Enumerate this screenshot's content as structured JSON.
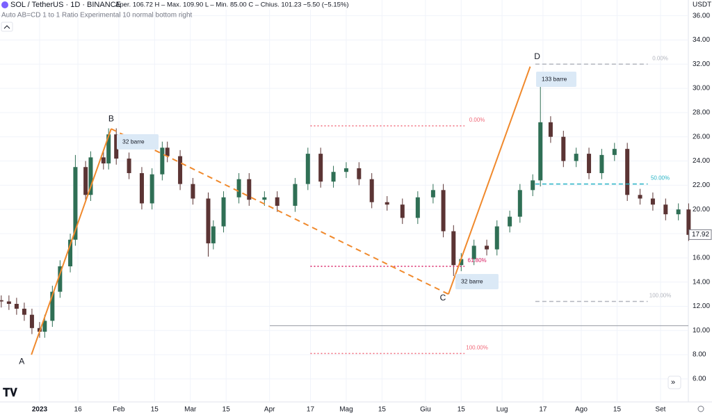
{
  "header": {
    "symbol": "SOL / TetherUS · 1D · BINANCE",
    "ohlc": "Aper. 106.72  H – Max. 109.90  L – Min. 85.00  C – Chius. 101.23  −5.50 (−5.15%)",
    "indicator": "Auto AB=CD 1 to 1 Ratio Experimental 10 normal bottom right",
    "currency": "USDT"
  },
  "chart_data": {
    "type": "candlestick",
    "up_color": "#2f6f55",
    "down_color": "#5b3434",
    "grid": true,
    "x": [
      -15,
      -12,
      -9,
      -6,
      -3,
      0,
      2,
      5,
      8,
      12,
      14,
      18,
      20,
      25,
      27,
      30,
      35,
      40,
      44,
      48,
      50,
      55,
      60,
      66,
      68,
      72,
      78,
      82,
      88,
      93,
      100,
      105,
      110,
      115,
      120,
      125,
      130,
      136,
      142,
      148,
      154,
      158,
      162,
      165,
      170,
      175,
      179,
      184,
      188,
      193,
      196,
      200,
      205,
      210,
      215,
      220,
      225,
      230,
      235,
      240,
      245,
      250,
      254
    ],
    "open": [
      12.5,
      12.4,
      12.2,
      11.8,
      11.3,
      10.2,
      9.9,
      10.8,
      13.2,
      15.3,
      17.5,
      23.5,
      21.2,
      24.3,
      23.8,
      26.2,
      24.2,
      23.0,
      20.5,
      22.9,
      25.1,
      24.4,
      22.1,
      20.9,
      17.2,
      18.6,
      21.0,
      22.5,
      20.8,
      21.0,
      20.3,
      22.1,
      24.6,
      22.3,
      23.1,
      23.4,
      22.5,
      20.6,
      20.4,
      19.3,
      21.0,
      21.6,
      18.2,
      15.4,
      15.9,
      17.0,
      16.7,
      18.6,
      19.4,
      21.6,
      22.4,
      27.2,
      26.0,
      24.0,
      24.6,
      23.0,
      24.5,
      25.0,
      21.2,
      20.9,
      20.4,
      19.6,
      20.0
    ],
    "high": [
      12.9,
      12.9,
      12.7,
      12.3,
      11.8,
      10.7,
      11.3,
      13.7,
      15.8,
      18.0,
      24.5,
      24.0,
      24.8,
      24.8,
      26.7,
      26.7,
      24.7,
      23.5,
      23.4,
      25.6,
      25.6,
      24.9,
      22.6,
      21.4,
      19.1,
      21.5,
      23.0,
      23.0,
      21.5,
      21.5,
      22.6,
      25.1,
      25.1,
      23.6,
      23.9,
      23.9,
      23.0,
      21.1,
      20.9,
      21.5,
      22.1,
      22.1,
      18.7,
      16.4,
      17.5,
      17.5,
      19.1,
      19.9,
      22.1,
      22.9,
      30.5,
      27.7,
      26.5,
      25.1,
      25.1,
      25.0,
      25.5,
      25.5,
      21.7,
      21.4,
      20.9,
      20.5,
      20.5
    ],
    "low": [
      11.9,
      11.7,
      11.3,
      10.8,
      9.7,
      9.4,
      9.4,
      10.3,
      12.7,
      14.8,
      17.0,
      20.7,
      20.7,
      23.3,
      23.3,
      23.7,
      22.5,
      20.0,
      20.0,
      22.4,
      23.9,
      21.6,
      20.4,
      16.1,
      16.7,
      18.1,
      20.5,
      20.3,
      20.3,
      19.8,
      19.8,
      21.6,
      21.8,
      21.8,
      22.6,
      22.0,
      20.1,
      19.9,
      18.8,
      18.8,
      20.5,
      17.7,
      14.5,
      14.9,
      15.4,
      16.2,
      16.2,
      18.1,
      18.9,
      21.1,
      21.9,
      25.5,
      23.5,
      23.5,
      22.5,
      22.5,
      24.0,
      20.7,
      20.4,
      19.9,
      19.1,
      19.1,
      17.4
    ],
    "close": [
      12.4,
      12.2,
      11.8,
      11.3,
      10.2,
      9.9,
      10.8,
      13.2,
      15.3,
      17.5,
      23.5,
      21.2,
      24.3,
      23.8,
      26.2,
      24.2,
      23.0,
      20.5,
      22.9,
      25.1,
      24.4,
      22.1,
      20.9,
      17.2,
      18.6,
      21.0,
      22.5,
      20.8,
      21.0,
      20.3,
      22.1,
      24.6,
      22.3,
      23.1,
      23.4,
      22.5,
      20.6,
      20.4,
      19.3,
      21.0,
      21.6,
      18.2,
      15.4,
      15.9,
      17.0,
      16.7,
      18.6,
      19.4,
      21.6,
      22.4,
      27.2,
      26.0,
      24.0,
      24.6,
      23.0,
      24.5,
      25.0,
      21.2,
      20.9,
      20.4,
      19.6,
      20.0,
      17.9
    ],
    "xlim": [
      -15.5,
      253.9
    ],
    "ylim": [
      4.1,
      37.3
    ],
    "xticks": [
      {
        "value": 0,
        "label": "2023"
      },
      {
        "value": 15,
        "label": "16"
      },
      {
        "value": 31,
        "label": "Feb"
      },
      {
        "value": 45,
        "label": "15"
      },
      {
        "value": 59,
        "label": "Mar"
      },
      {
        "value": 73,
        "label": "15"
      },
      {
        "value": 90,
        "label": "Apr"
      },
      {
        "value": 106,
        "label": "17"
      },
      {
        "value": 120,
        "label": "Mag"
      },
      {
        "value": 134,
        "label": "15"
      },
      {
        "value": 151,
        "label": "Giu"
      },
      {
        "value": 165,
        "label": "15"
      },
      {
        "value": 181,
        "label": "Lug"
      },
      {
        "value": 197,
        "label": "17"
      },
      {
        "value": 212,
        "label": "Ago"
      },
      {
        "value": 226,
        "label": "15"
      },
      {
        "value": 243,
        "label": "Set"
      }
    ],
    "yticks": [
      {
        "value": 6,
        "label": "6.00"
      },
      {
        "value": 8,
        "label": "8.00"
      },
      {
        "value": 10,
        "label": "10.00"
      },
      {
        "value": 12,
        "label": "12.00"
      },
      {
        "value": 14,
        "label": "14.00"
      },
      {
        "value": 16,
        "label": "16.00"
      },
      {
        "value": 18,
        "label": "18.00"
      },
      {
        "value": 20,
        "label": "20.00"
      },
      {
        "value": 22,
        "label": "22.00"
      },
      {
        "value": 24,
        "label": "24.00"
      },
      {
        "value": 26,
        "label": "26.00"
      },
      {
        "value": 28,
        "label": "28.00"
      },
      {
        "value": 30,
        "label": "30.00"
      },
      {
        "value": 32,
        "label": "32.00"
      },
      {
        "value": 34,
        "label": "34.00"
      },
      {
        "value": 36,
        "label": "36.00"
      }
    ],
    "last_price": {
      "value": 17.92,
      "label": "17.92"
    },
    "hline": 10.4,
    "points": [
      {
        "label": "A",
        "x": -3.2,
        "y": 8.0
      },
      {
        "label": "B",
        "x": 28,
        "y": 26.66
      },
      {
        "label": "C",
        "x": 160,
        "y": 13.0
      },
      {
        "label": "D",
        "x": 192,
        "y": 31.8
      }
    ],
    "bar_counts": [
      "32 barre",
      "133 barre",
      "32 barre"
    ],
    "fib_left": {
      "x": [
        106,
        166.3
      ],
      "levels": [
        {
          "label": "0.00%",
          "value": 26.9,
          "color": "#f06a7a"
        },
        {
          "label": "61.80%",
          "value": 15.3,
          "color": "#d81b60"
        },
        {
          "label": "100.00%",
          "value": 8.1,
          "color": "#f06a7a"
        }
      ]
    },
    "fib_right": {
      "x": [
        194,
        238
      ],
      "levels": [
        {
          "label": "0.00%",
          "value": 32.0,
          "color": "#b2b5be"
        },
        {
          "label": "50.00%",
          "value": 22.1,
          "color": "#26b3c5"
        },
        {
          "label": "100.00%",
          "value": 12.4,
          "color": "#b2b5be"
        }
      ]
    }
  }
}
